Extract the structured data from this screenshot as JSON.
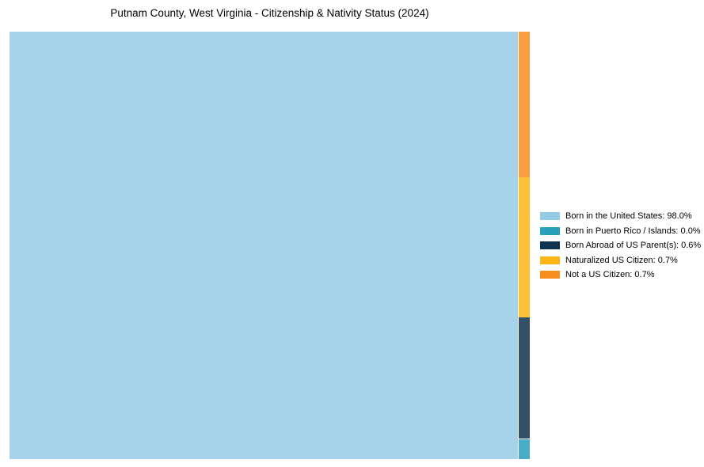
{
  "page": {
    "background": "#ffffff"
  },
  "chart": {
    "title": "Putnam County, West Virginia - Citizenship & Nativity Status (2024)"
  },
  "chart_data": {
    "type": "treemap",
    "title": "Putnam County, West Virginia - Citizenship & Nativity Status (2024)",
    "legend_position": "right-center",
    "legend_frame": false,
    "tile_opacity": 0.85,
    "segments": [
      {
        "label": "Born in the United States",
        "value_pct": 98.0,
        "color": "#96CBE6",
        "legend_text": "Born in the United States: 98.0%"
      },
      {
        "label": "Born in Puerto Rico / Islands",
        "value_pct": 0.0,
        "color": "#2A9FBC",
        "legend_text": "Born in Puerto Rico / Islands: 0.0%"
      },
      {
        "label": "Born Abroad of US Parent(s)",
        "value_pct": 0.6,
        "color": "#0E324F",
        "legend_text": "Born Abroad of US Parent(s): 0.6%"
      },
      {
        "label": "Naturalized US Citizen",
        "value_pct": 0.7,
        "color": "#FDB616",
        "legend_text": "Naturalized US Citizen: 0.7%"
      },
      {
        "label": "Not a US Citizen",
        "value_pct": 0.7,
        "color": "#F78F1E",
        "legend_text": "Not a US Citizen: 0.7%"
      }
    ]
  }
}
